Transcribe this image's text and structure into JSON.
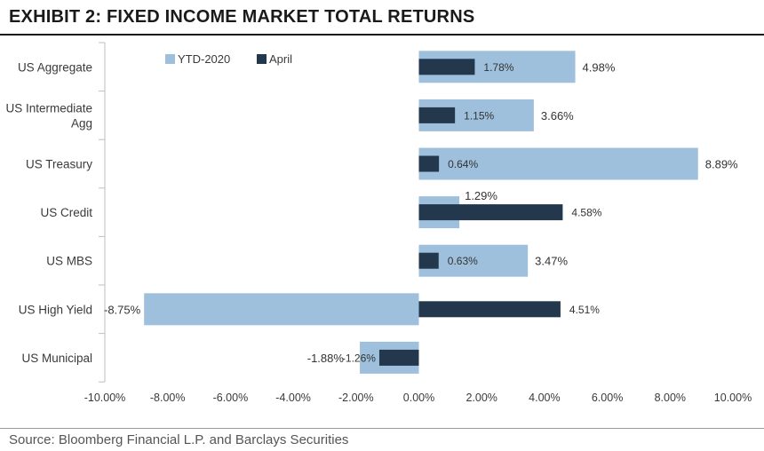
{
  "exhibit_title": "EXHIBIT 2: FIXED INCOME MARKET TOTAL RETURNS",
  "source": "Source: Bloomberg Financial L.P. and Barclays Securities",
  "colors": {
    "ytd": "#9ec0dc",
    "april": "#23384c",
    "axis": "#bfbfbf",
    "text": "#3a3a3a"
  },
  "chart_data": {
    "type": "bar",
    "orientation": "horizontal",
    "title": "",
    "xlabel": "",
    "ylabel": "",
    "categories": [
      "US Aggregate",
      "US Intermediate Agg",
      "US Treasury",
      "US Credit",
      "US MBS",
      "US High Yield",
      "US Municipal"
    ],
    "category_lines": [
      [
        "US Aggregate"
      ],
      [
        "US Intermediate",
        "Agg"
      ],
      [
        "US Treasury"
      ],
      [
        "US Credit"
      ],
      [
        "US MBS"
      ],
      [
        "US High Yield"
      ],
      [
        "US Municipal"
      ]
    ],
    "series": [
      {
        "name": "YTD-2020",
        "values": [
          4.98,
          3.66,
          8.89,
          1.29,
          3.47,
          -8.75,
          -1.88
        ],
        "labels": [
          "4.98%",
          "3.66%",
          "8.89%",
          "1.29%",
          "3.47%",
          "-8.75%",
          "-1.88%"
        ]
      },
      {
        "name": "April",
        "values": [
          1.78,
          1.15,
          0.64,
          4.58,
          0.63,
          4.51,
          -1.26
        ],
        "labels": [
          "1.78%",
          "1.15%",
          "0.64%",
          "4.58%",
          "0.63%",
          "4.51%",
          "-1.26%"
        ]
      }
    ],
    "xlim": [
      -10,
      10
    ],
    "x_ticks": [
      -10,
      -8,
      -6,
      -4,
      -2,
      0,
      2,
      4,
      6,
      8,
      10
    ],
    "x_tick_labels": [
      "-10.00%",
      "-8.00%",
      "-6.00%",
      "-4.00%",
      "-2.00%",
      "0.00%",
      "2.00%",
      "4.00%",
      "6.00%",
      "8.00%",
      "10.00%"
    ],
    "grid": false,
    "legend": "top-left"
  }
}
